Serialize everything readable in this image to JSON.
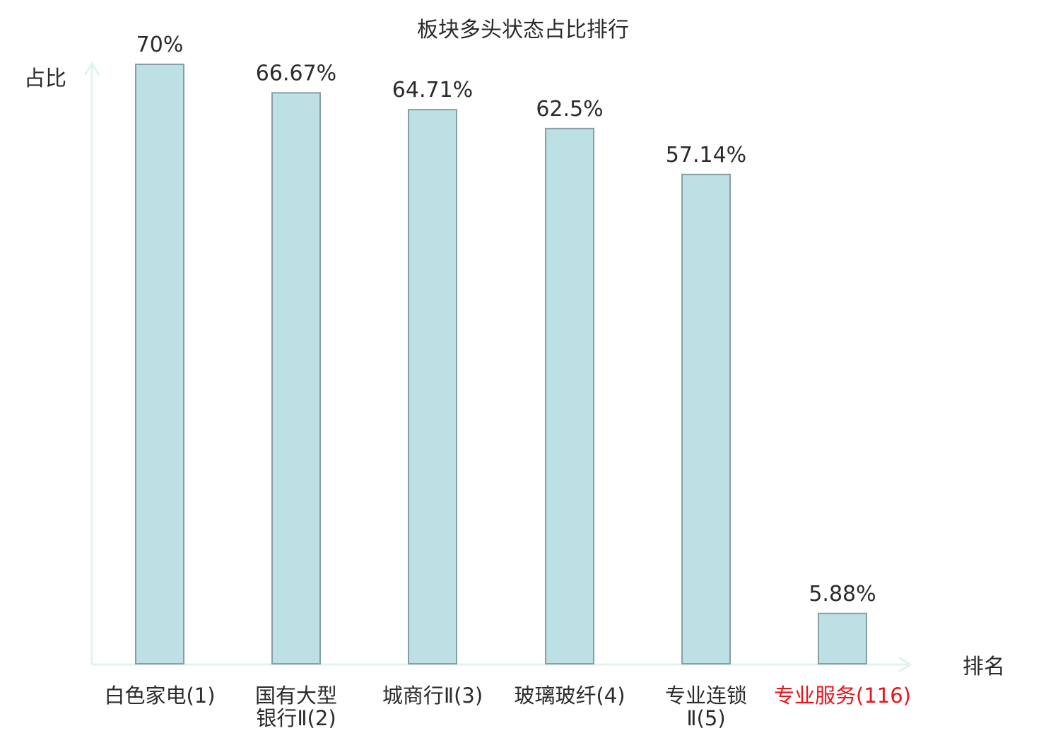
{
  "chart_data": {
    "type": "bar",
    "title": "板块多头状态占比排行",
    "ylabel": "占比",
    "xlabel": "排名",
    "ylim": [
      0,
      70
    ],
    "grid": false,
    "categories": [
      [
        "白色家电(1)"
      ],
      [
        "国有大型",
        "银行Ⅱ(2)"
      ],
      [
        "城商行Ⅱ(3)"
      ],
      [
        "玻璃玻纤(4)"
      ],
      [
        "专业连锁",
        "Ⅱ(5)"
      ],
      [
        "专业服务(116)"
      ]
    ],
    "values": [
      70,
      66.67,
      64.71,
      62.5,
      57.14,
      5.88
    ],
    "value_labels": [
      "70%",
      "66.67%",
      "64.71%",
      "62.5%",
      "57.14%",
      "5.88%"
    ],
    "highlight_index": 5
  },
  "colors": {
    "bar_fill": "#bce0e3",
    "bar_stroke": "#869fa3",
    "axis": "#e1f3f0",
    "text": "#2b2b2b",
    "highlight_text": "#e8141b"
  }
}
